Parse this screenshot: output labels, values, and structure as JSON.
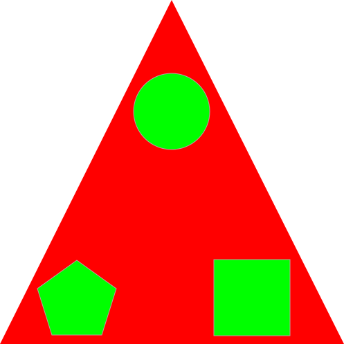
{
  "background_color": "#ffffff",
  "shapes": {
    "triangle": {
      "kind": "triangle",
      "fill": "#ff0000"
    },
    "circle": {
      "kind": "circle",
      "fill": "#00ff00",
      "stroke": "#b8a0a0"
    },
    "pentagon": {
      "kind": "pentagon",
      "fill": "#00ff00",
      "stroke": "#b8a0a0"
    },
    "square": {
      "kind": "square",
      "fill": "#00ff00",
      "stroke": "#b8a0a0"
    }
  }
}
